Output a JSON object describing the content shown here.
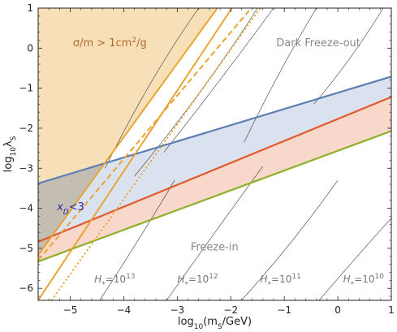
{
  "chart_data": {
    "type": "area",
    "title": "",
    "xlabel_html": "log10(mS/GeV)",
    "ylabel_html": "log10 λS",
    "xlim": [
      -5.6,
      1.0
    ],
    "ylim": [
      -6.3,
      1.0
    ],
    "x_ticks": [
      -5,
      -4,
      -3,
      -2,
      -1,
      0,
      1
    ],
    "x_tick_labels": [
      "−5",
      "−4",
      "−3",
      "−2",
      "−1",
      "0",
      "1"
    ],
    "y_ticks": [
      1,
      0,
      -1,
      -2,
      -3,
      -4,
      -5,
      -6
    ],
    "y_tick_labels": [
      "1",
      "0",
      "−1",
      "−2",
      "−3",
      "−4",
      "−5",
      "−6"
    ],
    "grid": false,
    "colors": {
      "blue": "#5b7fb5",
      "red": "#e05a2b",
      "green": "#8fb02a",
      "orange": "#e9a12a",
      "orange_fill": "#f7dfb8",
      "blue_fill": "#dbe2ef",
      "red_fill": "#f9d8cc",
      "grey_fill": "#c4bdb2",
      "contour": "#3a3a3a"
    },
    "series": [
      {
        "name": "blue boundary",
        "x": [
          -5.6,
          1.0
        ],
        "y": [
          -3.38,
          -0.71
        ]
      },
      {
        "name": "red boundary",
        "x": [
          -5.6,
          1.0
        ],
        "y": [
          -4.84,
          -1.22
        ]
      },
      {
        "name": "green boundary",
        "x": [
          -5.6,
          1.0
        ],
        "y": [
          -5.33,
          -2.07
        ]
      },
      {
        "name": "orange solid 1",
        "x": [
          -5.6,
          -2.25
        ],
        "y": [
          -5.17,
          1.0
        ]
      },
      {
        "name": "orange solid 2",
        "x": [
          -5.6,
          -1.98
        ],
        "y": [
          -6.3,
          1.0
        ]
      },
      {
        "name": "orange dashed",
        "x": [
          -5.6,
          -1.62
        ],
        "y": [
          -5.3,
          1.0
        ]
      },
      {
        "name": "orange dotted",
        "x": [
          -5.35,
          -1.45
        ],
        "y": [
          -6.3,
          1.0
        ]
      }
    ],
    "contours": [
      {
        "label": "H*=10^13",
        "x": [
          -4.35,
          -3.5,
          -2.6
        ],
        "y": [
          -3.0,
          -0.7,
          1.0
        ]
      },
      {
        "label": "H*=10^12",
        "x": [
          -3.8,
          -2.45,
          -1.5
        ],
        "y": [
          -3.2,
          -1.0,
          1.0
        ]
      },
      {
        "label": "H*=10^12",
        "x": [
          -3.25,
          -2.3,
          -1.2
        ],
        "y": [
          -2.6,
          -1.0,
          1.0
        ]
      },
      {
        "label": "H*=10^11",
        "x": [
          -1.75,
          -1.1,
          -0.4
        ],
        "y": [
          -2.35,
          -0.55,
          1.0
        ]
      },
      {
        "label": "H*=10^10",
        "x": [
          -0.45,
          0.2,
          0.85
        ],
        "y": [
          -1.4,
          -0.4,
          1.0
        ]
      },
      {
        "label": "H*=10^13",
        "x": [
          -4.45,
          -3.6,
          -3.05
        ],
        "y": [
          -6.3,
          -4.55,
          -3.3
        ]
      },
      {
        "label": "H*=10^12",
        "x": [
          -3.2,
          -2.3,
          -1.4
        ],
        "y": [
          -6.3,
          -4.6,
          -2.95
        ]
      },
      {
        "label": "H*=10^11",
        "x": [
          -1.8,
          -0.85,
          0.0
        ],
        "y": [
          -6.3,
          -4.9,
          -3.3
        ]
      },
      {
        "label": "H*=10^10",
        "x": [
          -0.35,
          0.55,
          1.0
        ],
        "y": [
          -6.3,
          -4.9,
          -4.25
        ]
      }
    ],
    "annotations": [
      {
        "key": "sigma",
        "prefix": "σ/m > 1cm",
        "sup": "2",
        "suffix": "/g",
        "x": -4.95,
        "y": 0.05,
        "color": "#b0692a"
      },
      {
        "key": "dark",
        "text": "Dark Freeze-out",
        "x": -1.15,
        "y": 0.05,
        "color": "#888888"
      },
      {
        "key": "freezein",
        "text": "Freeze-in",
        "x": -2.75,
        "y": -5.05,
        "color": "#888888"
      },
      {
        "key": "xd",
        "main": "x",
        "sub": "D",
        "tail": "<3",
        "x": -5.25,
        "y": -4.05,
        "color": "#2a2aa0"
      }
    ],
    "h_labels": [
      {
        "base": "H",
        "sub": "*",
        "mid": "=10",
        "sup": "13",
        "x": -4.55,
        "y": -5.85
      },
      {
        "base": "H",
        "sub": "*",
        "mid": "=10",
        "sup": "12",
        "x": -3.0,
        "y": -5.85
      },
      {
        "base": "H",
        "sub": "*",
        "mid": "=10",
        "sup": "11",
        "x": -1.45,
        "y": -5.85
      },
      {
        "base": "H",
        "sub": "*",
        "mid": "=10",
        "sup": "10",
        "x": 0.1,
        "y": -5.85
      }
    ],
    "axis_label_parts": {
      "x_a": "log",
      "x_sub": "10",
      "x_b": "(m",
      "x_sub2": "S",
      "x_c": "/GeV)",
      "y_a": "log",
      "y_sub": "10",
      "y_b": "λ",
      "y_sub2": "S"
    }
  }
}
